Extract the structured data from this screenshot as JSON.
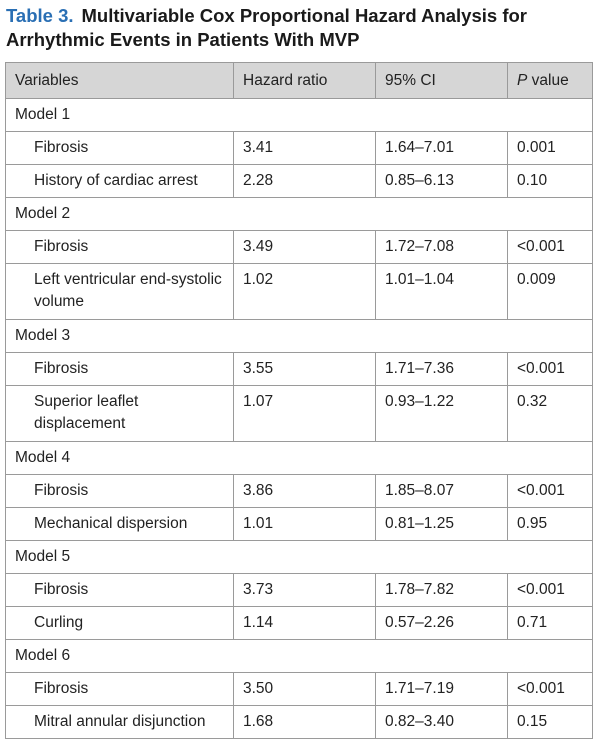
{
  "header": {
    "label": "Table 3.",
    "title": "Multivariable Cox Proportional Hazard Analysis for Arrhythmic Events in Patients With MVP"
  },
  "table": {
    "columns": [
      "Variables",
      "Hazard ratio",
      "95% CI",
      "P value"
    ],
    "groups": [
      {
        "label": "Model 1",
        "rows": [
          [
            "Fibrosis",
            "3.41",
            "1.64–7.01",
            "0.001"
          ],
          [
            "History of cardiac arrest",
            "2.28",
            "0.85–6.13",
            "0.10"
          ]
        ]
      },
      {
        "label": "Model 2",
        "rows": [
          [
            "Fibrosis",
            "3.49",
            "1.72–7.08",
            "<0.001"
          ],
          [
            "Left ventricular end-systolic volume",
            "1.02",
            "1.01–1.04",
            "0.009"
          ]
        ]
      },
      {
        "label": "Model 3",
        "rows": [
          [
            "Fibrosis",
            "3.55",
            "1.71–7.36",
            "<0.001"
          ],
          [
            "Superior leaflet displacement",
            "1.07",
            "0.93–1.22",
            "0.32"
          ]
        ]
      },
      {
        "label": "Model 4",
        "rows": [
          [
            "Fibrosis",
            "3.86",
            "1.85–8.07",
            "<0.001"
          ],
          [
            "Mechanical dispersion",
            "1.01",
            "0.81–1.25",
            "0.95"
          ]
        ]
      },
      {
        "label": "Model 5",
        "rows": [
          [
            "Fibrosis",
            "3.73",
            "1.78–7.82",
            "<0.001"
          ],
          [
            "Curling",
            "1.14",
            "0.57–2.26",
            "0.71"
          ]
        ]
      },
      {
        "label": "Model 6",
        "rows": [
          [
            "Fibrosis",
            "3.50",
            "1.71–7.19",
            "<0.001"
          ],
          [
            "Mitral annular disjunction",
            "1.68",
            "0.82–3.40",
            "0.15"
          ]
        ]
      }
    ]
  }
}
